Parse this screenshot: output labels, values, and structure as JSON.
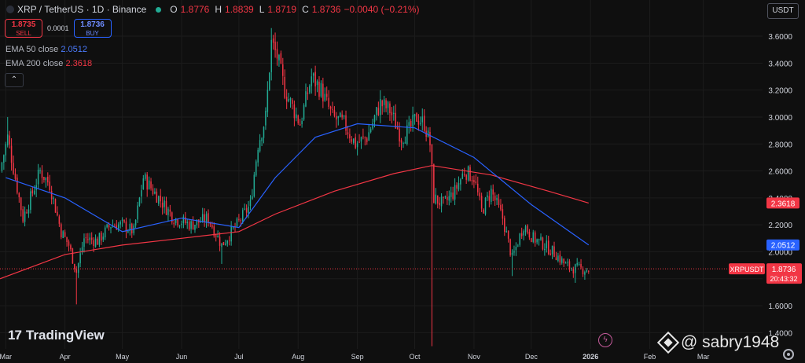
{
  "header": {
    "title": "XRP / TetherUS · 1D · Binance",
    "o_label": "O",
    "o_value": "1.8776",
    "h_label": "H",
    "h_value": "1.8839",
    "l_label": "L",
    "l_value": "1.8719",
    "c_label": "C",
    "c_value": "1.8736",
    "change": "−0.0040 (−0.21%)"
  },
  "trade": {
    "sell_price": "1.8735",
    "sell_label": "SELL",
    "spread": "0.0001",
    "buy_price": "1.8736",
    "buy_label": "BUY"
  },
  "indicators": {
    "ema50_name": "EMA 50 close",
    "ema50_value": "2.0512",
    "ema200_name": "EMA 200 close",
    "ema200_value": "2.3618"
  },
  "collapse_icon": "chevron-up-icon",
  "currency": "USDT",
  "brand": "TradingView",
  "watermark": "@ sabry1948",
  "colors": {
    "up": "#22ab94",
    "down": "#f23645",
    "ema50": "#2962ff",
    "ema200": "#f23645",
    "background": "#0f0f0f"
  },
  "chart_data": {
    "type": "candlestick",
    "symbol": "XRPUSDT",
    "ylim": [
      1.28,
      3.74
    ],
    "yticks": [
      1.4,
      1.6,
      1.8,
      2.0,
      2.2,
      2.4,
      2.6,
      2.8,
      3.0,
      3.2,
      3.4,
      3.6
    ],
    "ytick_labels": [
      "1.4000",
      "1.6000",
      "1.8000",
      "2.0000",
      "2.2000",
      "2.4000",
      "2.6000",
      "2.8000",
      "3.0000",
      "3.2000",
      "3.4000",
      "3.6000"
    ],
    "x_start": "2025-02-26",
    "x_end": "2026-04-01",
    "xticks": [
      {
        "date": "2025-03-01",
        "label": "Mar"
      },
      {
        "date": "2025-04-01",
        "label": "Apr"
      },
      {
        "date": "2025-05-01",
        "label": "May"
      },
      {
        "date": "2025-06-01",
        "label": "Jun"
      },
      {
        "date": "2025-07-01",
        "label": "Jul"
      },
      {
        "date": "2025-08-01",
        "label": "Aug"
      },
      {
        "date": "2025-09-01",
        "label": "Sep"
      },
      {
        "date": "2025-10-01",
        "label": "Oct"
      },
      {
        "date": "2025-11-01",
        "label": "Nov"
      },
      {
        "date": "2025-12-01",
        "label": "Dec"
      },
      {
        "date": "2026-01-01",
        "label": "2026"
      },
      {
        "date": "2026-02-01",
        "label": "Feb"
      },
      {
        "date": "2026-03-01",
        "label": "Mar"
      }
    ],
    "close_anchors": [
      {
        "date": "2025-02-26",
        "close": 2.6
      },
      {
        "date": "2025-03-02",
        "close": 2.85
      },
      {
        "date": "2025-03-06",
        "close": 2.55
      },
      {
        "date": "2025-03-10",
        "close": 2.25
      },
      {
        "date": "2025-03-14",
        "close": 2.4
      },
      {
        "date": "2025-03-19",
        "close": 2.6
      },
      {
        "date": "2025-03-24",
        "close": 2.5
      },
      {
        "date": "2025-03-30",
        "close": 2.15
      },
      {
        "date": "2025-04-03",
        "close": 2.05
      },
      {
        "date": "2025-04-07",
        "close": 1.85
      },
      {
        "date": "2025-04-11",
        "close": 2.1
      },
      {
        "date": "2025-04-18",
        "close": 2.08
      },
      {
        "date": "2025-04-25",
        "close": 2.2
      },
      {
        "date": "2025-05-01",
        "close": 2.2
      },
      {
        "date": "2025-05-07",
        "close": 2.15
      },
      {
        "date": "2025-05-12",
        "close": 2.55
      },
      {
        "date": "2025-05-20",
        "close": 2.4
      },
      {
        "date": "2025-05-28",
        "close": 2.25
      },
      {
        "date": "2025-06-06",
        "close": 2.2
      },
      {
        "date": "2025-06-15",
        "close": 2.25
      },
      {
        "date": "2025-06-22",
        "close": 2.05
      },
      {
        "date": "2025-06-30",
        "close": 2.2
      },
      {
        "date": "2025-07-07",
        "close": 2.35
      },
      {
        "date": "2025-07-11",
        "close": 2.8
      },
      {
        "date": "2025-07-15",
        "close": 3.0
      },
      {
        "date": "2025-07-18",
        "close": 3.55
      },
      {
        "date": "2025-07-21",
        "close": 3.45
      },
      {
        "date": "2025-07-25",
        "close": 3.2
      },
      {
        "date": "2025-08-02",
        "close": 2.95
      },
      {
        "date": "2025-08-08",
        "close": 3.3
      },
      {
        "date": "2025-08-13",
        "close": 3.2
      },
      {
        "date": "2025-08-19",
        "close": 3.0
      },
      {
        "date": "2025-08-25",
        "close": 2.95
      },
      {
        "date": "2025-08-31",
        "close": 2.8
      },
      {
        "date": "2025-09-06",
        "close": 2.85
      },
      {
        "date": "2025-09-13",
        "close": 3.1
      },
      {
        "date": "2025-09-18",
        "close": 3.05
      },
      {
        "date": "2025-09-24",
        "close": 2.85
      },
      {
        "date": "2025-09-28",
        "close": 2.9
      },
      {
        "date": "2025-10-02",
        "close": 3.0
      },
      {
        "date": "2025-10-06",
        "close": 2.95
      },
      {
        "date": "2025-10-09",
        "close": 2.8
      },
      {
        "date": "2025-10-11",
        "close": 2.4
      },
      {
        "date": "2025-10-16",
        "close": 2.35
      },
      {
        "date": "2025-10-22",
        "close": 2.45
      },
      {
        "date": "2025-10-27",
        "close": 2.6
      },
      {
        "date": "2025-11-01",
        "close": 2.55
      },
      {
        "date": "2025-11-05",
        "close": 2.3
      },
      {
        "date": "2025-11-10",
        "close": 2.45
      },
      {
        "date": "2025-11-16",
        "close": 2.25
      },
      {
        "date": "2025-11-21",
        "close": 1.95
      },
      {
        "date": "2025-11-27",
        "close": 2.2
      },
      {
        "date": "2025-12-02",
        "close": 2.1
      },
      {
        "date": "2025-12-08",
        "close": 2.05
      },
      {
        "date": "2025-12-14",
        "close": 1.98
      },
      {
        "date": "2025-12-19",
        "close": 1.9
      },
      {
        "date": "2025-12-23",
        "close": 1.88
      },
      {
        "date": "2025-12-27",
        "close": 1.87
      },
      {
        "date": "2025-12-31",
        "close": 1.87
      }
    ],
    "extremes": [
      {
        "date": "2025-03-02",
        "high": 3.0
      },
      {
        "date": "2025-04-07",
        "low": 1.61
      },
      {
        "date": "2025-06-22",
        "low": 1.91
      },
      {
        "date": "2025-07-18",
        "high": 3.66
      },
      {
        "date": "2025-10-10",
        "low": 1.3
      },
      {
        "date": "2025-11-21",
        "low": 1.82
      },
      {
        "date": "2025-12-24",
        "low": 1.77
      }
    ],
    "ema50": [
      {
        "date": "2025-03-01",
        "value": 2.55
      },
      {
        "date": "2025-04-01",
        "value": 2.4
      },
      {
        "date": "2025-05-01",
        "value": 2.15
      },
      {
        "date": "2025-06-01",
        "value": 2.25
      },
      {
        "date": "2025-07-01",
        "value": 2.18
      },
      {
        "date": "2025-07-20",
        "value": 2.55
      },
      {
        "date": "2025-08-10",
        "value": 2.85
      },
      {
        "date": "2025-09-01",
        "value": 2.95
      },
      {
        "date": "2025-10-01",
        "value": 2.92
      },
      {
        "date": "2025-11-01",
        "value": 2.7
      },
      {
        "date": "2025-12-01",
        "value": 2.35
      },
      {
        "date": "2025-12-31",
        "value": 2.0512
      }
    ],
    "ema200": [
      {
        "date": "2025-02-26",
        "value": 1.8
      },
      {
        "date": "2025-04-01",
        "value": 1.98
      },
      {
        "date": "2025-05-01",
        "value": 2.05
      },
      {
        "date": "2025-06-01",
        "value": 2.1
      },
      {
        "date": "2025-07-01",
        "value": 2.15
      },
      {
        "date": "2025-07-20",
        "value": 2.28
      },
      {
        "date": "2025-08-20",
        "value": 2.45
      },
      {
        "date": "2025-09-20",
        "value": 2.58
      },
      {
        "date": "2025-10-10",
        "value": 2.64
      },
      {
        "date": "2025-11-10",
        "value": 2.57
      },
      {
        "date": "2025-12-10",
        "value": 2.45
      },
      {
        "date": "2025-12-31",
        "value": 2.3618
      }
    ],
    "price_labels": {
      "ema200": {
        "value": 2.3618,
        "text": "2.3618"
      },
      "ema50": {
        "value": 2.0512,
        "text": "2.0512"
      },
      "last": {
        "value": 1.8736,
        "symbol": "XRPUSDT",
        "text": "1.8736",
        "countdown": "20:43:32"
      }
    }
  }
}
